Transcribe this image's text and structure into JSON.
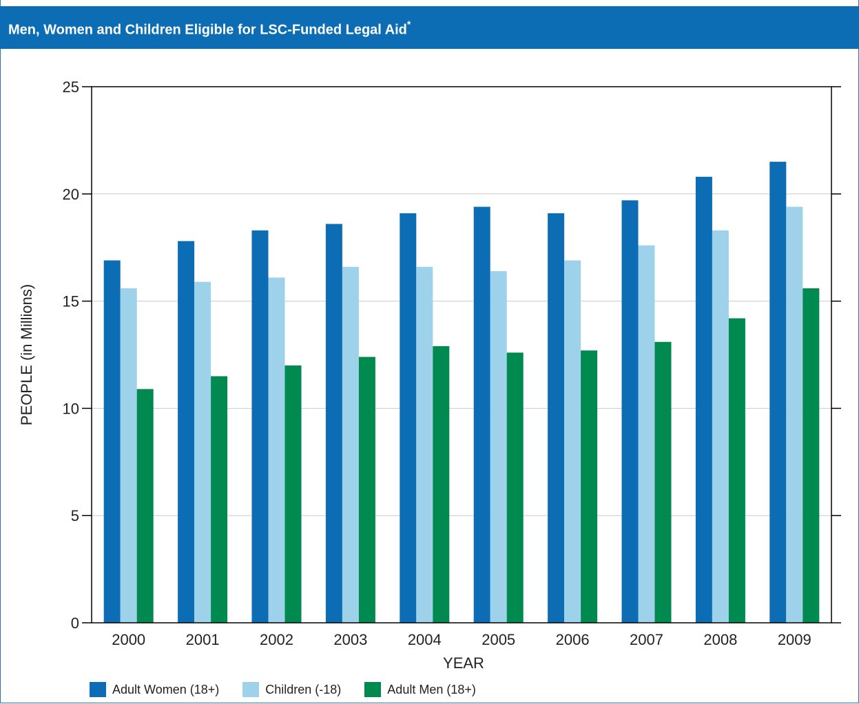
{
  "header": {
    "title": "Men, Women and Children Eligible for LSC-Funded Legal Aid",
    "footnote_mark": "*"
  },
  "chart_data": {
    "type": "bar",
    "title": "Men, Women and Children Eligible for LSC-Funded Legal Aid*",
    "xlabel": "YEAR",
    "ylabel": "PEOPLE (in Millions)",
    "ylim": [
      0,
      25
    ],
    "yticks": [
      0,
      5,
      10,
      15,
      20,
      25
    ],
    "grid": true,
    "legend_position": "bottom-left",
    "categories": [
      "2000",
      "2001",
      "2002",
      "2003",
      "2004",
      "2005",
      "2006",
      "2007",
      "2008",
      "2009"
    ],
    "series": [
      {
        "name": "Adult Women (18+)",
        "color": "#0c6db5",
        "values": [
          16.9,
          17.8,
          18.3,
          18.6,
          19.1,
          19.4,
          19.1,
          19.7,
          20.8,
          21.5
        ]
      },
      {
        "name": "Children (-18)",
        "color": "#9ed1ea",
        "values": [
          15.6,
          15.9,
          16.1,
          16.6,
          16.6,
          16.4,
          16.9,
          17.6,
          18.3,
          19.4
        ]
      },
      {
        "name": "Adult Men (18+)",
        "color": "#008a4f",
        "values": [
          10.9,
          11.5,
          12.0,
          12.4,
          12.9,
          12.6,
          12.7,
          13.1,
          14.2,
          15.6
        ]
      }
    ]
  }
}
